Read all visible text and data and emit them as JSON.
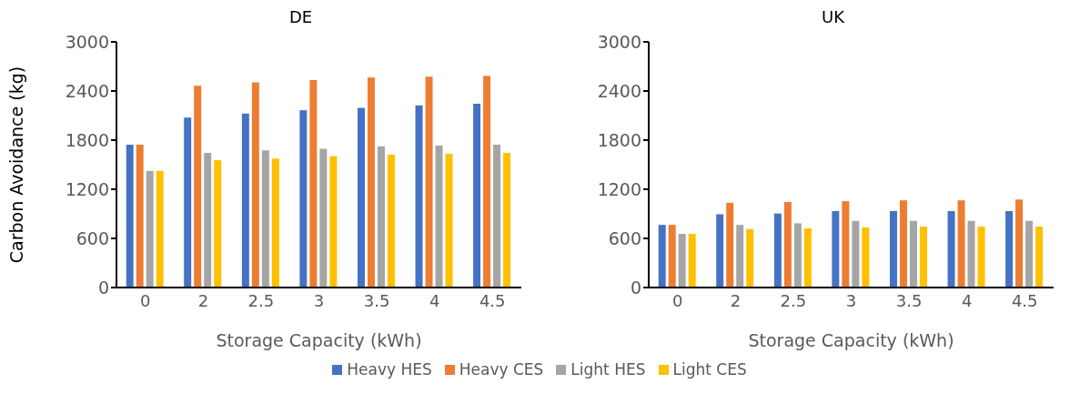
{
  "chart_data": [
    {
      "type": "bar",
      "title": "DE",
      "xlabel": "Storage Capacity (kWh)",
      "ylabel": "Carbon Avoidance (kg)",
      "categories": [
        "0",
        "2",
        "2.5",
        "3",
        "3.5",
        "4",
        "4.5"
      ],
      "ylim": [
        0,
        3000
      ],
      "yticks": [
        0,
        600,
        1200,
        1800,
        2400,
        3000
      ],
      "grid": false,
      "legend": "bottom",
      "series": [
        {
          "name": "Heavy HES",
          "color": "#4472c4",
          "values": [
            1750,
            2080,
            2130,
            2170,
            2200,
            2230,
            2250
          ]
        },
        {
          "name": "Heavy CES",
          "color": "#ed7d31",
          "values": [
            1750,
            2470,
            2510,
            2540,
            2570,
            2580,
            2590
          ]
        },
        {
          "name": "Light HES",
          "color": "#a5a5a5",
          "values": [
            1430,
            1650,
            1680,
            1700,
            1730,
            1740,
            1750
          ]
        },
        {
          "name": "Light CES",
          "color": "#ffc000",
          "values": [
            1430,
            1560,
            1580,
            1610,
            1630,
            1640,
            1650
          ]
        }
      ]
    },
    {
      "type": "bar",
      "title": "UK",
      "xlabel": "Storage Capacity (kWh)",
      "categories": [
        "0",
        "2",
        "2.5",
        "3",
        "3.5",
        "4",
        "4.5"
      ],
      "ylim": [
        0,
        3000
      ],
      "yticks": [
        0,
        600,
        1200,
        1800,
        2400,
        3000
      ],
      "grid": false,
      "series": [
        {
          "color": "#4472c4",
          "values": [
            770,
            900,
            910,
            940,
            940,
            940,
            940
          ]
        },
        {
          "color": "#ed7d31",
          "values": [
            770,
            1040,
            1050,
            1060,
            1070,
            1070,
            1080
          ]
        },
        {
          "color": "#a5a5a5",
          "values": [
            660,
            770,
            790,
            820,
            820,
            820,
            820
          ]
        },
        {
          "color": "#ffc000",
          "values": [
            660,
            720,
            730,
            740,
            750,
            750,
            750
          ]
        }
      ]
    }
  ]
}
